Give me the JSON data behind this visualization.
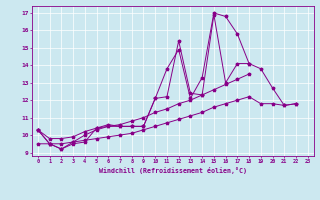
{
  "xlabel": "Windchill (Refroidissement éolien,°C)",
  "background_color": "#cce8f0",
  "line_color": "#880088",
  "xlim": [
    -0.5,
    23.5
  ],
  "ylim": [
    8.8,
    17.4
  ],
  "xticks": [
    0,
    1,
    2,
    3,
    4,
    5,
    6,
    7,
    8,
    9,
    10,
    11,
    12,
    13,
    14,
    15,
    16,
    17,
    18,
    19,
    20,
    21,
    22,
    23
  ],
  "yticks": [
    9,
    10,
    11,
    12,
    13,
    14,
    15,
    16,
    17
  ],
  "series": [
    [
      10.3,
      9.5,
      9.2,
      9.5,
      9.6,
      10.4,
      10.6,
      10.5,
      10.5,
      10.5,
      12.1,
      13.8,
      14.9,
      12.1,
      13.3,
      17.0,
      16.8,
      15.8,
      14.1,
      13.8,
      12.7,
      11.7,
      11.8
    ],
    [
      10.3,
      9.5,
      9.2,
      9.6,
      10.0,
      10.3,
      10.5,
      10.5,
      10.5,
      10.5,
      12.1,
      12.2,
      15.4,
      12.4,
      12.3,
      16.9,
      13.0,
      14.1,
      14.1,
      null,
      null,
      null,
      null
    ],
    [
      10.3,
      9.8,
      9.8,
      9.9,
      10.2,
      10.4,
      10.5,
      10.6,
      10.8,
      11.0,
      11.3,
      11.5,
      11.8,
      12.0,
      12.3,
      12.6,
      12.9,
      13.2,
      13.5,
      null,
      null,
      null,
      null
    ],
    [
      9.5,
      9.5,
      9.5,
      9.6,
      9.7,
      9.8,
      9.9,
      10.0,
      10.1,
      10.3,
      10.5,
      10.7,
      10.9,
      11.1,
      11.3,
      11.6,
      11.8,
      12.0,
      12.2,
      11.8,
      11.8,
      11.7,
      11.8
    ]
  ]
}
